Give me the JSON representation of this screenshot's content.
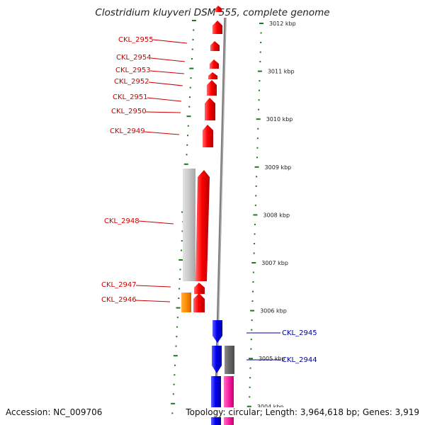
{
  "title": "Clostridium kluyveri DSM 555, complete genome",
  "footer": {
    "accession": "Accession: NC_009706",
    "topology": "Topology: circular; Length: 3,964,618 bp; Genes: 3,919"
  },
  "colors": {
    "cds_forward": "#ff0000",
    "cds_reverse": "#0000ee",
    "rna": "#ff8c00",
    "pseudo_light": "#cccccc",
    "dark_gray": "#666666",
    "magenta": "#ff1fa0",
    "tick_green": "#1a7a1a",
    "backbone": "#808080"
  },
  "ticks": [
    {
      "label": "3012 kbp"
    },
    {
      "label": "3011 kbp"
    },
    {
      "label": "3010 kbp"
    },
    {
      "label": "3009 kbp"
    },
    {
      "label": "3008 kbp"
    },
    {
      "label": "3007 kbp"
    },
    {
      "label": "3006 kbp"
    },
    {
      "label": "3005 kbp"
    },
    {
      "label": "3004 kbp"
    }
  ],
  "genes_red": [
    "CKL_2955",
    "CKL_2954",
    "CKL_2953",
    "CKL_2952",
    "CKL_2951",
    "CKL_2950",
    "CKL_2949",
    "CKL_2948",
    "CKL_2947",
    "CKL_2946"
  ],
  "genes_blue": [
    "CKL_2945",
    "CKL_2944"
  ]
}
